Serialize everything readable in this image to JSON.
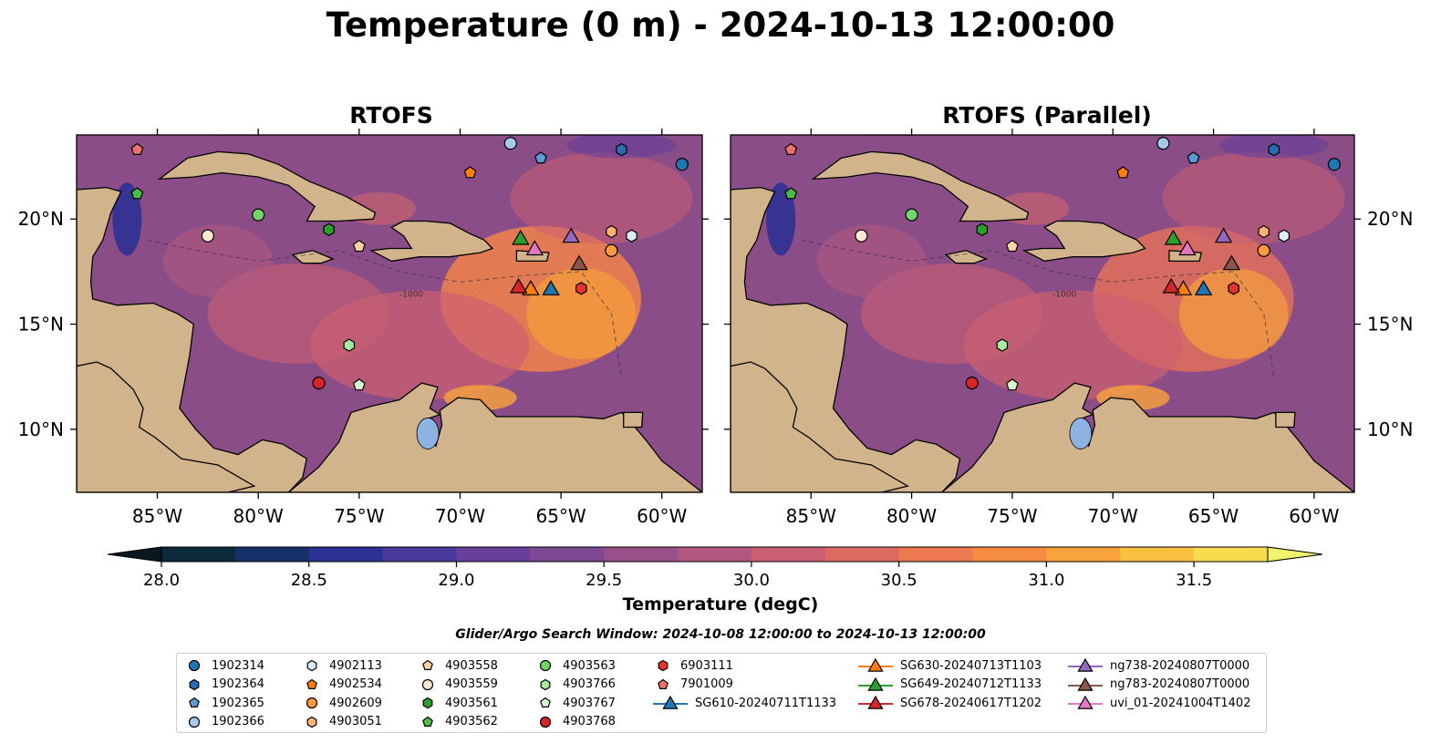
{
  "title": "Temperature (0 m) - 2024-10-13 12:00:00",
  "panels": [
    {
      "title": "RTOFS"
    },
    {
      "title": "RTOFS (Parallel)"
    }
  ],
  "colorbar": {
    "label": "Temperature (degC)",
    "ticks": [
      "28.0",
      "28.5",
      "29.0",
      "29.5",
      "30.0",
      "30.5",
      "31.0",
      "31.5"
    ],
    "colors": [
      "#0b2a3c",
      "#16306a",
      "#2d3193",
      "#4a3a9e",
      "#653f9a",
      "#7e4892",
      "#985089",
      "#b0587f",
      "#c95f72",
      "#de6b62",
      "#ee7852",
      "#f68c43",
      "#f9a33c",
      "#fac040",
      "#f8dc50"
    ],
    "extend_max_color": "#eef56a",
    "extend_min_color": "#081821"
  },
  "search_window": "Glider/Argo Search Window: 2024-10-08 12:00:00 to 2024-10-13 12:00:00",
  "chart_data": {
    "type": "heatmap",
    "variable": "Temperature (degC)",
    "depth": "0 m",
    "valid_time": "2024-10-13 12:00:00",
    "color_range": [
      28.0,
      31.5
    ],
    "extent": {
      "lon": [
        -89,
        -58
      ],
      "lat": [
        7,
        24
      ]
    },
    "xticks": [
      {
        "lon": -85,
        "label": "85°W"
      },
      {
        "lon": -80,
        "label": "80°W"
      },
      {
        "lon": -75,
        "label": "75°W"
      },
      {
        "lon": -70,
        "label": "70°W"
      },
      {
        "lon": -65,
        "label": "65°W"
      },
      {
        "lon": -60,
        "label": "60°W"
      }
    ],
    "yticks": [
      {
        "lat": 10,
        "label": "10°N"
      },
      {
        "lat": 15,
        "label": "15°N"
      },
      {
        "lat": 20,
        "label": "20°N"
      }
    ],
    "contour_label": "-1000",
    "floats": [
      {
        "id": "1902314",
        "lon": -59.0,
        "lat": 22.6,
        "marker": "circle",
        "color": "#1f77b4"
      },
      {
        "id": "1902364",
        "lon": -62.0,
        "lat": 23.3,
        "marker": "hexagon",
        "color": "#2a6cb0"
      },
      {
        "id": "1902365",
        "lon": -66.0,
        "lat": 22.9,
        "marker": "pentagon",
        "color": "#5b9bd5"
      },
      {
        "id": "1902366",
        "lon": -67.5,
        "lat": 23.6,
        "marker": "circle",
        "color": "#a6cbe8"
      },
      {
        "id": "4902113",
        "lon": -61.5,
        "lat": 19.2,
        "marker": "hexagon",
        "color": "#dbeefa"
      },
      {
        "id": "4902534",
        "lon": -69.5,
        "lat": 22.2,
        "marker": "pentagon",
        "color": "#ff7f0e"
      },
      {
        "id": "4902609",
        "lon": -62.5,
        "lat": 18.5,
        "marker": "circle",
        "color": "#ff9a3c"
      },
      {
        "id": "4903051",
        "lon": -62.5,
        "lat": 19.4,
        "marker": "hexagon",
        "color": "#ffb273"
      },
      {
        "id": "4903558",
        "lon": -75.0,
        "lat": 18.7,
        "marker": "pentagon",
        "color": "#ffd3a6"
      },
      {
        "id": "4903559",
        "lon": -82.5,
        "lat": 19.2,
        "marker": "circle",
        "color": "#ffe8d2"
      },
      {
        "id": "4903561",
        "lon": -76.5,
        "lat": 19.5,
        "marker": "hexagon",
        "color": "#2ca02c"
      },
      {
        "id": "4903562",
        "lon": -86.0,
        "lat": 21.2,
        "marker": "pentagon",
        "color": "#4cbb47"
      },
      {
        "id": "4903563",
        "lon": -80.0,
        "lat": 20.2,
        "marker": "circle",
        "color": "#74d46a"
      },
      {
        "id": "4903766",
        "lon": -75.5,
        "lat": 14.0,
        "marker": "hexagon",
        "color": "#a7eba0"
      },
      {
        "id": "4903767",
        "lon": -75.0,
        "lat": 12.1,
        "marker": "pentagon",
        "color": "#d6f7cf"
      },
      {
        "id": "4903768",
        "lon": -77.0,
        "lat": 12.2,
        "marker": "circle",
        "color": "#d62728"
      },
      {
        "id": "6903111",
        "lon": -64.0,
        "lat": 16.7,
        "marker": "hexagon",
        "color": "#e3342f"
      },
      {
        "id": "7901009",
        "lon": -86.0,
        "lat": 23.3,
        "marker": "pentagon",
        "color": "#f07070"
      }
    ],
    "gliders": [
      {
        "id": "SG610-20240711T1133",
        "lon": -65.5,
        "lat": 16.7,
        "marker": "triangle",
        "color": "#1f77b4"
      },
      {
        "id": "SG630-20240713T1103",
        "lon": -66.5,
        "lat": 16.7,
        "marker": "triangle",
        "color": "#ff7f0e"
      },
      {
        "id": "SG649-20240712T1133",
        "lon": -67.0,
        "lat": 19.1,
        "marker": "triangle",
        "color": "#2ca02c"
      },
      {
        "id": "SG678-20240617T1202",
        "lon": -67.1,
        "lat": 16.8,
        "marker": "triangle",
        "color": "#d62728"
      },
      {
        "id": "ng738-20240807T0000",
        "lon": -64.5,
        "lat": 19.2,
        "marker": "triangle",
        "color": "#9467bd"
      },
      {
        "id": "ng783-20240807T0000",
        "lon": -64.1,
        "lat": 17.9,
        "marker": "triangle",
        "color": "#8c564b"
      },
      {
        "id": "uvi_01-20241004T1402",
        "lon": -66.3,
        "lat": 18.6,
        "marker": "triangle",
        "color": "#e377c2"
      }
    ]
  },
  "legend": {
    "columns": [
      [
        "1902314",
        "1902364",
        "1902365",
        "1902366"
      ],
      [
        "4902113",
        "4902534",
        "4902609",
        "4903051"
      ],
      [
        "4903558",
        "4903559",
        "4903561",
        "4903562"
      ],
      [
        "4903563",
        "4903766",
        "4903767",
        "4903768"
      ],
      [
        "6903111",
        "7901009",
        "SG610-20240711T1133"
      ],
      [
        "SG630-20240713T1103",
        "SG649-20240712T1133",
        "SG678-20240617T1202"
      ],
      [
        "ng738-20240807T0000",
        "ng783-20240807T0000",
        "uvi_01-20241004T1402"
      ]
    ]
  }
}
